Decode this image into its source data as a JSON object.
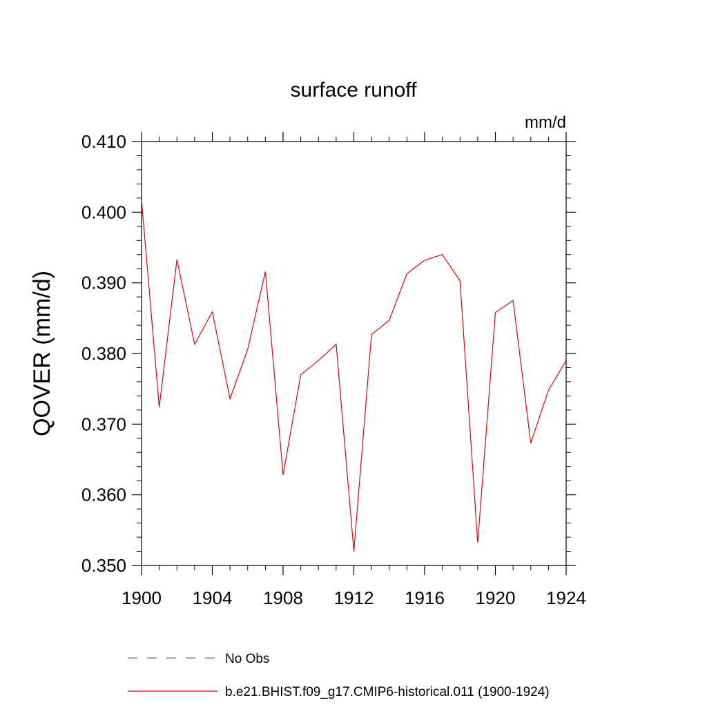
{
  "chart_data": {
    "type": "line",
    "title": "surface runoff",
    "units": "mm/d",
    "ylabel": "QOVER  (mm/d)",
    "xlabel": "",
    "xlim": [
      1900,
      1924
    ],
    "ylim": [
      0.35,
      0.41
    ],
    "x_ticks": [
      "1900",
      "1904",
      "1908",
      "1912",
      "1916",
      "1920",
      "1924"
    ],
    "y_ticks": [
      "0.350",
      "0.360",
      "0.370",
      "0.380",
      "0.390",
      "0.400",
      "0.410"
    ],
    "x": [
      1900,
      1901,
      1902,
      1903,
      1904,
      1905,
      1906,
      1907,
      1908,
      1909,
      1910,
      1911,
      1912,
      1913,
      1914,
      1915,
      1916,
      1917,
      1918,
      1919,
      1920,
      1921,
      1922,
      1923,
      1924
    ],
    "series": [
      {
        "name": "b.e21.BHIST.f09_g17.CMIP6-historical.011 (1900-1924)",
        "color": "#e00000",
        "values": [
          0.4017,
          0.3724,
          0.3933,
          0.3813,
          0.3859,
          0.3736,
          0.3806,
          0.3916,
          0.3628,
          0.377,
          0.379,
          0.3813,
          0.352,
          0.3827,
          0.3847,
          0.3913,
          0.3932,
          0.394,
          0.3903,
          0.3532,
          0.3858,
          0.3875,
          0.3673,
          0.3748,
          0.379
        ]
      }
    ],
    "legend": [
      {
        "label": "No Obs",
        "style": "dashed",
        "color": "#6a6ab8"
      },
      {
        "label": "b.e21.BHIST.f09_g17.CMIP6-historical.011 (1900-1924)",
        "style": "solid",
        "color": "#e00000"
      }
    ],
    "legend_position": "bottom",
    "grid": false
  }
}
